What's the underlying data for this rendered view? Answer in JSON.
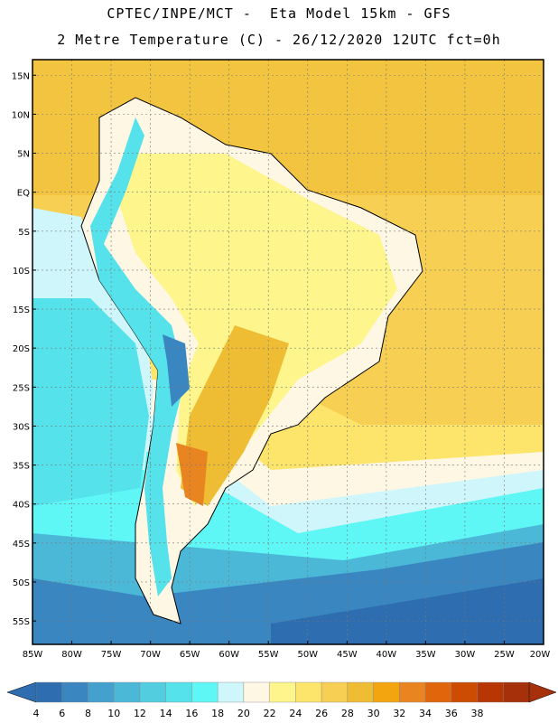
{
  "title_line1": "CPTEC/INPE/MCT -  Eta Model 15km - GFS",
  "title_line2": "2 Metre Temperature (C) - 26/12/2020 12UTC fct=0h",
  "map": {
    "lon_range": [
      -85,
      -20
    ],
    "lat_range": [
      -58,
      17
    ],
    "lon_ticks": [
      "85W",
      "80W",
      "75W",
      "70W",
      "65W",
      "60W",
      "55W",
      "50W",
      "45W",
      "40W",
      "35W",
      "30W",
      "25W",
      "20W"
    ],
    "lat_ticks": [
      "15N",
      "10N",
      "5N",
      "EQ",
      "5S",
      "10S",
      "15S",
      "20S",
      "25S",
      "30S",
      "35S",
      "40S",
      "45S",
      "50S",
      "55S"
    ],
    "lat_tick_values": [
      15,
      10,
      5,
      0,
      -5,
      -10,
      -15,
      -20,
      -25,
      -30,
      -35,
      -40,
      -45,
      -50,
      -55
    ],
    "lon_tick_values": [
      -85,
      -80,
      -75,
      -70,
      -65,
      -60,
      -55,
      -50,
      -45,
      -40,
      -35,
      -30,
      -25,
      -20
    ]
  },
  "colorbar": {
    "labels": [
      "4",
      "6",
      "8",
      "10",
      "12",
      "14",
      "16",
      "18",
      "20",
      "22",
      "24",
      "26",
      "28",
      "30",
      "32",
      "34",
      "36",
      "38"
    ],
    "colors": [
      "#2e6db0",
      "#3a86c0",
      "#44a0cd",
      "#4cb8d8",
      "#52cde0",
      "#55e2ea",
      "#5ff6f6",
      "#cff6fb",
      "#fdf7e4",
      "#fef58c",
      "#fde56c",
      "#f7cf52",
      "#efbd33",
      "#f2a50f",
      "#e98520",
      "#e1650b",
      "#cd4c04",
      "#b83604",
      "#a5300a"
    ],
    "left_color": "#2e6db0",
    "right_color": "#a5300a"
  }
}
